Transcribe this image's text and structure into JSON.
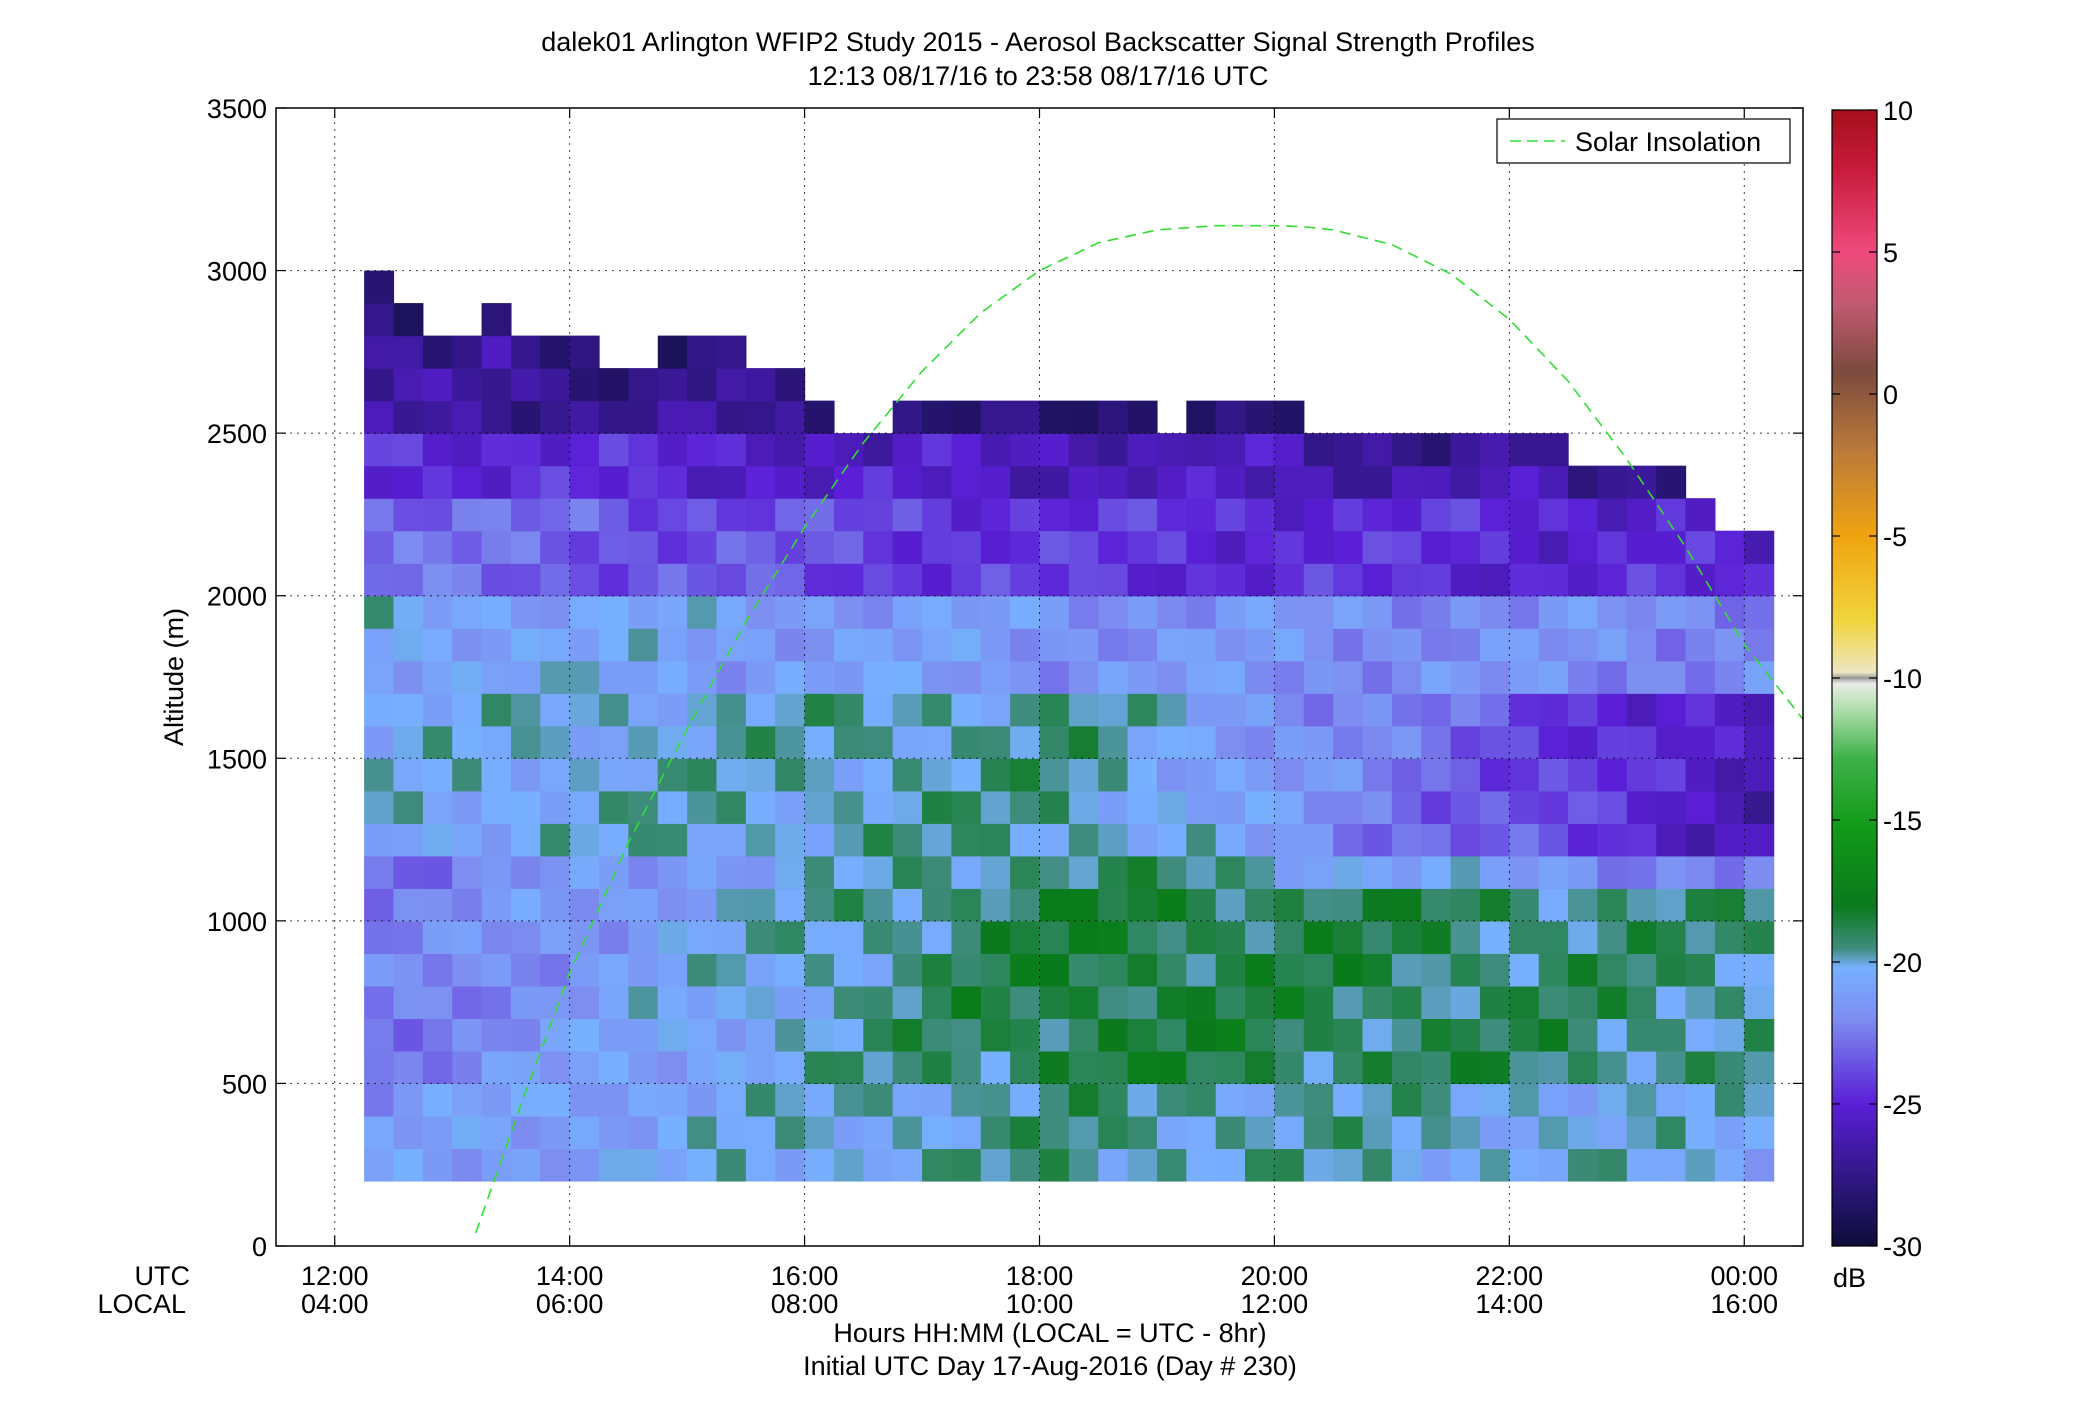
{
  "chart_data": {
    "type": "heatmap",
    "title": "dalek01 Arlington WFIP2 Study 2015 - Aerosol Backscatter Signal Strength Profiles",
    "subtitle": "12:13 08/17/16 to 23:58 08/17/16  UTC",
    "ylabel": "Altitude (m)",
    "xlabel": "Hours HH:MM  (LOCAL = UTC - 8hr)",
    "xlabel2": "Initial UTC Day 17-Aug-2016 (Day # 230)",
    "x_row_label_utc": "UTC",
    "x_row_label_local": "LOCAL",
    "xlim_hours": [
      11.5,
      24.5
    ],
    "ylim": [
      0,
      3500
    ],
    "x_ticks": [
      {
        "h": 12,
        "utc": "12:00",
        "local": "04:00"
      },
      {
        "h": 14,
        "utc": "14:00",
        "local": "06:00"
      },
      {
        "h": 16,
        "utc": "16:00",
        "local": "08:00"
      },
      {
        "h": 18,
        "utc": "18:00",
        "local": "10:00"
      },
      {
        "h": 20,
        "utc": "20:00",
        "local": "12:00"
      },
      {
        "h": 22,
        "utc": "22:00",
        "local": "14:00"
      },
      {
        "h": 24,
        "utc": "00:00",
        "local": "16:00"
      }
    ],
    "y_ticks": [
      {
        "v": 0,
        "label": "0"
      },
      {
        "v": 500,
        "label": "500"
      },
      {
        "v": 1000,
        "label": "1000"
      },
      {
        "v": 1500,
        "label": "1500"
      },
      {
        "v": 2000,
        "label": "2000"
      },
      {
        "v": 2500,
        "label": "2500"
      },
      {
        "v": 3000,
        "label": "3000"
      },
      {
        "v": 3500,
        "label": "3500"
      }
    ],
    "grid": true,
    "colorbar": {
      "range": [
        -30,
        10
      ],
      "unit": "dB",
      "ticks": [
        {
          "v": 10,
          "label": "10"
        },
        {
          "v": 5,
          "label": "5"
        },
        {
          "v": 0,
          "label": "0"
        },
        {
          "v": -5,
          "label": "-5"
        },
        {
          "v": -10,
          "label": "-10"
        },
        {
          "v": -15,
          "label": "-15"
        },
        {
          "v": -20,
          "label": "-20"
        },
        {
          "v": -25,
          "label": "-25"
        },
        {
          "v": -30,
          "label": "-30"
        }
      ]
    },
    "grid_spec": {
      "t_start_hours": 12.25,
      "t_step_hours": 0.25,
      "n_times": 48,
      "alt_start_m": 200,
      "alt_step_m": 100,
      "n_alts": 28,
      "col_tops_m": [
        3000,
        2900,
        2800,
        2800,
        2900,
        2800,
        2800,
        2800,
        2700,
        2700,
        2800,
        2800,
        2800,
        2700,
        2700,
        2600,
        2500,
        2500,
        2600,
        2600,
        2600,
        2600,
        2600,
        2600,
        2600,
        2600,
        2600,
        2500,
        2600,
        2600,
        2600,
        2600,
        2500,
        2500,
        2500,
        2500,
        2500,
        2500,
        2500,
        2500,
        2500,
        2400,
        2400,
        2400,
        2400,
        2300,
        2200,
        2200
      ]
    },
    "layers": [
      {
        "from_m": 200,
        "to_m": 500,
        "early_db": -21.5,
        "mid_db": -19.5,
        "late_db": -20.5
      },
      {
        "from_m": 500,
        "to_m": 1100,
        "early_db": -22.5,
        "mid_db": -18.5,
        "late_db": -19.5
      },
      {
        "from_m": 1100,
        "to_m": 1200,
        "early_db": -22.8,
        "mid_db": -19.0,
        "late_db": -22.5
      },
      {
        "from_m": 1200,
        "to_m": 1700,
        "early_db": -20.5,
        "mid_db": -19.5,
        "late_db": -26.0
      },
      {
        "from_m": 1700,
        "to_m": 2000,
        "early_db": -20.5,
        "mid_db": -21.5,
        "late_db": -22.0
      },
      {
        "from_m": 2000,
        "to_m": 2300,
        "early_db": -22.8,
        "mid_db": -24.5,
        "late_db": -25.0
      },
      {
        "from_m": 2300,
        "to_m": 2500,
        "early_db": -24.5,
        "mid_db": -25.8,
        "late_db": -26.5
      },
      {
        "from_m": 2500,
        "to_m": 3000,
        "early_db": -26.8,
        "mid_db": -27.5,
        "late_db": -27.5
      }
    ],
    "series": [
      {
        "name": "Solar Insolation",
        "type": "line",
        "style": "dashed",
        "color": "#33dd33",
        "x_hours": [
          13.2,
          13.6,
          14.0,
          14.5,
          15.0,
          15.5,
          16.0,
          16.5,
          17.0,
          17.5,
          18.0,
          18.5,
          19.0,
          19.5,
          20.0,
          20.25,
          20.5,
          21.0,
          21.5,
          22.0,
          22.5,
          23.0,
          23.5,
          24.0,
          24.5
        ],
        "y_m": [
          40,
          450,
          840,
          1240,
          1590,
          1920,
          2210,
          2470,
          2690,
          2870,
          3000,
          3085,
          3125,
          3138,
          3138,
          3135,
          3125,
          3080,
          2990,
          2850,
          2660,
          2420,
          2150,
          1850,
          1620
        ]
      }
    ],
    "legend": {
      "position": "top-right",
      "entries": [
        "Solar Insolation"
      ]
    }
  }
}
